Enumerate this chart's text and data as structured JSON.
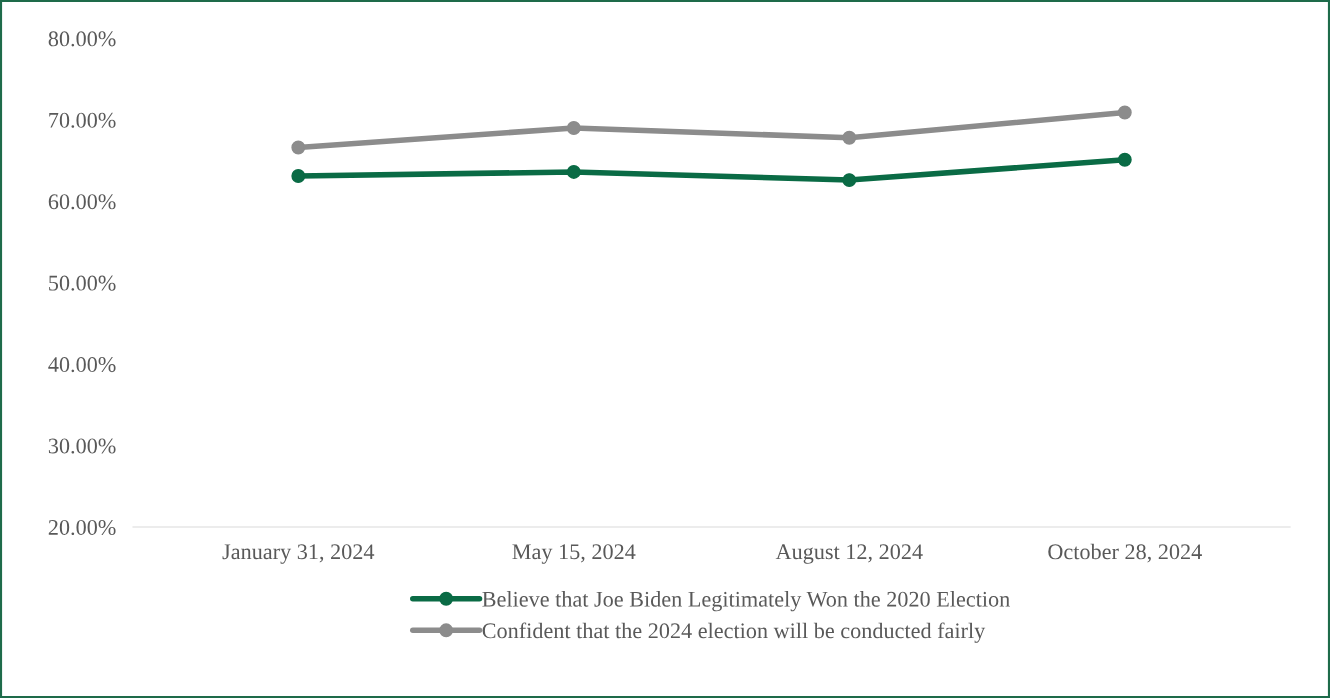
{
  "chart_data": {
    "type": "line",
    "categories": [
      "January 31, 2024",
      "May 15, 2024",
      "August 12, 2024",
      "October 28, 2024"
    ],
    "series": [
      {
        "name": "Believe that Joe Biden Legitimately Won the 2020 Election",
        "color": "#0a6b45",
        "values": [
          63.1,
          63.6,
          62.6,
          65.1
        ]
      },
      {
        "name": "Confident that the 2024 election will be conducted fairly",
        "color": "#8c8c8c",
        "values": [
          66.6,
          69.0,
          67.8,
          70.9
        ]
      }
    ],
    "ylim": [
      20,
      80
    ],
    "yticks": [
      {
        "value": 20,
        "label": "20.00%"
      },
      {
        "value": 30,
        "label": "30.00%"
      },
      {
        "value": 40,
        "label": "40.00%"
      },
      {
        "value": 50,
        "label": "50.00%"
      },
      {
        "value": 60,
        "label": "60.00%"
      },
      {
        "value": 70,
        "label": "70.00%"
      },
      {
        "value": 80,
        "label": "80.00%"
      }
    ],
    "grid": false,
    "legend": "bottom",
    "marker": "circle",
    "line_style": "solid"
  }
}
